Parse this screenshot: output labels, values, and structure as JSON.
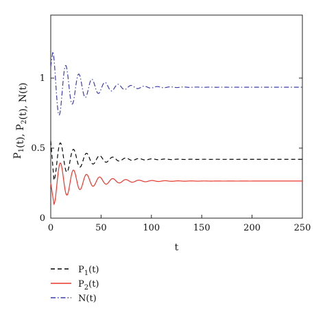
{
  "chart_data": {
    "type": "line",
    "title": "",
    "xlabel": "t",
    "ylabel": "P1(t), P2(t), N(t)",
    "ylabel_parts": [
      {
        "text": "P",
        "sub": "1"
      },
      {
        "text": "(t), P",
        "sub": "2"
      },
      {
        "text": "(t), N(t)",
        "sub": ""
      }
    ],
    "xlim": [
      0,
      250
    ],
    "ylim": [
      0,
      1.45
    ],
    "xticks": [
      0,
      50,
      100,
      150,
      200,
      250
    ],
    "xtick_labels": [
      "0",
      "50",
      "100",
      "150",
      "200",
      "250"
    ],
    "yticks": [
      0,
      0.5,
      1
    ],
    "ytick_labels": [
      "0",
      "0.5",
      "1"
    ],
    "grid": false,
    "legend_position": "below-left",
    "series": [
      {
        "name": "P1(t)",
        "legend_main": "P",
        "legend_sub": "1",
        "legend_tail": "(t)",
        "color": "#000000",
        "dash": "6,4",
        "initial": 0.55,
        "equilibrium": 0.42,
        "first_trough": 0.27,
        "first_peak": 0.69,
        "period": 13,
        "decay_time": 26
      },
      {
        "name": "P2(t)",
        "legend_main": "P",
        "legend_sub": "2",
        "legend_tail": "(t)",
        "color": "#e8372b",
        "dash": "",
        "initial": 0.25,
        "equilibrium": 0.265,
        "first_trough": 0.1,
        "first_peak": 0.38,
        "period": 13,
        "decay_time": 26
      },
      {
        "name": "N(t)",
        "legend_main": "N(t)",
        "legend_sub": "",
        "legend_tail": "",
        "color": "#3a3aaa",
        "dash": "7,3,1.5,3",
        "initial": 1.08,
        "equilibrium": 0.935,
        "first_peak_early": 1.19,
        "first_trough": 0.74,
        "first_peak": 1.1,
        "period": 13,
        "decay_time": 26
      }
    ]
  }
}
